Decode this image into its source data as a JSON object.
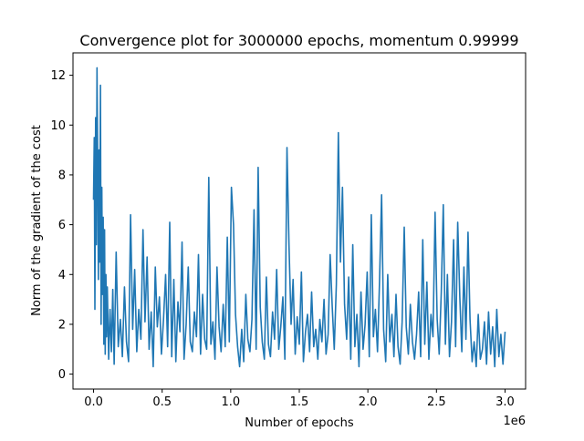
{
  "chart_data": {
    "type": "line",
    "title": "Convergence plot for 3000000 epochs, momentum 0.99999",
    "xlabel": "Number of epochs",
    "ylabel": "Norm of the gradient of the cost",
    "x_offset_label": "1e6",
    "xlim": [
      -150000,
      3150000
    ],
    "ylim": [
      -0.6,
      12.9
    ],
    "x_ticks": [
      0,
      500000,
      1000000,
      1500000,
      2000000,
      2500000,
      3000000
    ],
    "x_tick_labels": [
      "0.0",
      "0.5",
      "1.0",
      "1.5",
      "2.0",
      "2.5",
      "3.0"
    ],
    "y_ticks": [
      0,
      2,
      4,
      6,
      8,
      10,
      12
    ],
    "y_tick_labels": [
      "0",
      "2",
      "4",
      "6",
      "8",
      "10",
      "12"
    ],
    "grid": false,
    "legend": "none",
    "line_color": "#1f77b4",
    "series": [
      {
        "x": [
          0,
          5000,
          10000,
          15000,
          20000,
          25000,
          30000,
          35000,
          40000,
          45000,
          50000,
          55000,
          60000,
          65000,
          70000,
          75000,
          80000,
          85000,
          90000,
          95000,
          100000,
          110000,
          120000,
          130000,
          140000,
          150000,
          165000,
          180000,
          195000,
          210000,
          225000,
          240000,
          255000,
          270000,
          285000,
          300000,
          315000,
          330000,
          345000,
          360000,
          375000,
          390000,
          405000,
          420000,
          435000,
          450000,
          465000,
          480000,
          495000,
          510000,
          525000,
          540000,
          555000,
          570000,
          585000,
          600000,
          615000,
          630000,
          645000,
          660000,
          675000,
          690000,
          705000,
          720000,
          735000,
          750000,
          765000,
          780000,
          795000,
          810000,
          825000,
          840000,
          855000,
          870000,
          885000,
          900000,
          915000,
          930000,
          945000,
          960000,
          975000,
          990000,
          1005000,
          1020000,
          1035000,
          1050000,
          1065000,
          1080000,
          1095000,
          1110000,
          1125000,
          1140000,
          1155000,
          1170000,
          1185000,
          1200000,
          1215000,
          1230000,
          1245000,
          1260000,
          1275000,
          1290000,
          1305000,
          1320000,
          1335000,
          1350000,
          1365000,
          1380000,
          1395000,
          1410000,
          1425000,
          1440000,
          1455000,
          1470000,
          1485000,
          1500000,
          1515000,
          1530000,
          1545000,
          1560000,
          1575000,
          1590000,
          1605000,
          1620000,
          1635000,
          1650000,
          1665000,
          1680000,
          1695000,
          1710000,
          1725000,
          1740000,
          1755000,
          1770000,
          1785000,
          1800000,
          1815000,
          1830000,
          1845000,
          1860000,
          1875000,
          1890000,
          1905000,
          1920000,
          1935000,
          1950000,
          1965000,
          1980000,
          1995000,
          2010000,
          2025000,
          2040000,
          2055000,
          2070000,
          2085000,
          2100000,
          2115000,
          2130000,
          2145000,
          2160000,
          2175000,
          2190000,
          2205000,
          2220000,
          2235000,
          2250000,
          2265000,
          2280000,
          2295000,
          2310000,
          2325000,
          2340000,
          2355000,
          2370000,
          2385000,
          2400000,
          2415000,
          2430000,
          2445000,
          2460000,
          2475000,
          2490000,
          2505000,
          2520000,
          2535000,
          2550000,
          2565000,
          2580000,
          2595000,
          2610000,
          2625000,
          2640000,
          2655000,
          2670000,
          2685000,
          2700000,
          2715000,
          2730000,
          2745000,
          2760000,
          2775000,
          2790000,
          2805000,
          2820000,
          2835000,
          2850000,
          2865000,
          2880000,
          2895000,
          2910000,
          2925000,
          2940000,
          2955000,
          2970000,
          2985000,
          3000000
        ],
        "y": [
          7.0,
          9.5,
          2.6,
          10.3,
          5.2,
          12.3,
          8.5,
          3.8,
          9.0,
          4.5,
          11.6,
          2.0,
          7.5,
          3.2,
          6.3,
          1.2,
          5.8,
          0.8,
          4.0,
          1.5,
          3.5,
          0.6,
          2.6,
          0.9,
          3.4,
          0.4,
          4.9,
          1.1,
          2.2,
          0.7,
          3.5,
          1.3,
          0.5,
          6.4,
          1.8,
          4.2,
          0.9,
          2.6,
          1.4,
          5.8,
          2.1,
          4.7,
          1.0,
          2.5,
          0.3,
          4.3,
          1.9,
          3.1,
          0.8,
          2.2,
          4.0,
          1.1,
          6.1,
          0.7,
          3.8,
          0.5,
          2.9,
          1.7,
          5.3,
          0.6,
          2.0,
          4.3,
          1.3,
          0.9,
          2.5,
          1.5,
          4.8,
          0.8,
          3.2,
          1.4,
          1.0,
          7.9,
          1.2,
          2.1,
          0.6,
          4.3,
          1.9,
          0.9,
          2.8,
          1.1,
          5.5,
          1.3,
          7.5,
          6.0,
          2.4,
          1.1,
          0.3,
          1.8,
          0.5,
          3.2,
          1.4,
          0.9,
          2.2,
          6.6,
          1.0,
          8.3,
          2.7,
          1.3,
          0.6,
          3.9,
          1.2,
          0.7,
          2.5,
          1.4,
          4.2,
          1.0,
          1.9,
          3.1,
          0.6,
          9.1,
          5.2,
          2.0,
          3.8,
          0.8,
          2.3,
          1.2,
          4.1,
          0.5,
          1.7,
          2.4,
          0.9,
          3.3,
          1.1,
          1.8,
          0.6,
          2.2,
          1.3,
          3.0,
          0.8,
          1.6,
          4.8,
          2.7,
          1.0,
          3.6,
          9.7,
          4.5,
          7.5,
          2.8,
          1.4,
          3.9,
          0.6,
          5.2,
          1.1,
          2.4,
          0.3,
          3.3,
          1.0,
          2.0,
          4.1,
          0.7,
          6.4,
          1.5,
          2.6,
          0.9,
          3.7,
          7.2,
          1.8,
          0.5,
          4.0,
          1.3,
          2.4,
          0.7,
          3.2,
          1.1,
          0.4,
          2.1,
          5.9,
          1.9,
          0.8,
          2.8,
          1.3,
          0.6,
          1.6,
          3.3,
          0.7,
          5.4,
          1.2,
          3.7,
          0.6,
          2.4,
          1.5,
          6.5,
          2.2,
          0.8,
          3.3,
          6.8,
          1.2,
          4.0,
          0.7,
          2.1,
          5.4,
          1.1,
          6.1,
          3.1,
          0.9,
          4.3,
          1.4,
          5.7,
          2.2,
          0.5,
          1.3,
          0.3,
          2.4,
          0.6,
          1.0,
          2.1,
          0.4,
          2.5,
          0.8,
          1.9,
          0.3,
          2.6,
          0.7,
          1.6,
          0.4,
          1.7
        ]
      }
    ]
  }
}
